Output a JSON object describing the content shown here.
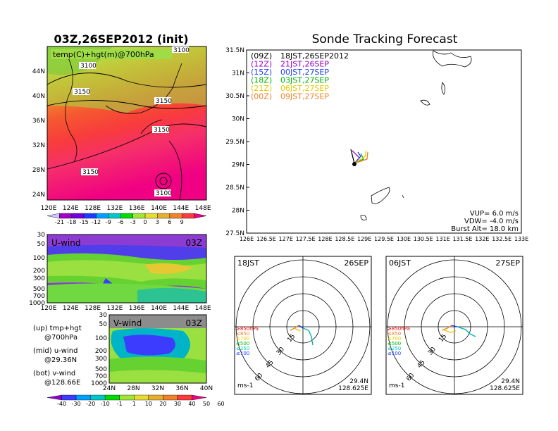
{
  "colors": {
    "sea": "#ffffff",
    "land_line": "#000000"
  },
  "left": {
    "title": "03Z,26SEP2012 (init)",
    "top_panel": {
      "label": "temp(C)+hgt(m)@700hPa",
      "lat_ticks": [
        "44N",
        "40N",
        "36N",
        "32N",
        "28N",
        "24N"
      ],
      "lon_ticks": [
        "120E",
        "124E",
        "128E",
        "132E",
        "136E",
        "140E",
        "144E",
        "148E"
      ],
      "contours": [
        "3100",
        "3100",
        "3150",
        "3150",
        "3150",
        "3150",
        "3100"
      ]
    },
    "temp_colorbar": {
      "labels": [
        "-21",
        "-18",
        "-15",
        "-12",
        "-9",
        "-6",
        "-3",
        "0",
        "3",
        "6",
        "9"
      ],
      "colors": [
        "#c8c8ff",
        "#a000c8",
        "#6e00dc",
        "#1e3cff",
        "#00a0ff",
        "#00c8c8",
        "#00dc00",
        "#a0e632",
        "#e6dc32",
        "#e6af2d",
        "#f08228",
        "#fa3c3c",
        "#f00082"
      ]
    },
    "u_panel": {
      "label": "U-wind",
      "time": "03Z",
      "p_ticks": [
        "30",
        "50",
        "100",
        "200",
        "300",
        "500",
        "700",
        "1000"
      ],
      "lon_ticks": [
        "120E",
        "124E",
        "128E",
        "132E",
        "136E",
        "140E",
        "144E",
        "148E"
      ]
    },
    "v_panel": {
      "label": "V-wind",
      "time": "03Z",
      "p_ticks": [
        "30",
        "50",
        "100",
        "200",
        "300",
        "500",
        "700",
        "1000"
      ],
      "lat_ticks": [
        "24N",
        "28N",
        "32N",
        "36N",
        "40N"
      ]
    },
    "legend_lines": [
      {
        "a": "(up) tmp+hgt",
        "b": "@700hPa"
      },
      {
        "a": "(mid) u-wind",
        "b": "@29.36N"
      },
      {
        "a": "(bot) v-wind",
        "b": "@128.66E"
      }
    ],
    "wind_colorbar": {
      "labels": [
        "-40",
        "-30",
        "-20",
        "-10",
        "-1",
        "1",
        "10",
        "20",
        "30",
        "40",
        "50",
        "60"
      ],
      "colors": [
        "#8c00d2",
        "#3c3cff",
        "#00a0ff",
        "#00c8c8",
        "#00dc00",
        "#a0e632",
        "#e6dc32",
        "#e6af2d",
        "#f08228",
        "#fa3c3c",
        "#f00082"
      ]
    }
  },
  "right": {
    "title": "Sonde Tracking Forecast",
    "map": {
      "lat_ticks": [
        "31.5N",
        "31N",
        "30.5N",
        "30N",
        "29.5N",
        "29N",
        "28.5N",
        "28N",
        "27.5N"
      ],
      "lon_ticks": [
        "126E",
        "126.5E",
        "127E",
        "127.5E",
        "128E",
        "128.5E",
        "129E",
        "129.5E",
        "130E",
        "130.5E",
        "131E",
        "131.5E",
        "132E",
        "132.5E",
        "133E"
      ],
      "legend": [
        {
          "tag": "(09Z)",
          "text": "18JST,26SEP2012",
          "color": "#000000"
        },
        {
          "tag": "(12Z)",
          "text": "21JST,26SEP",
          "color": "#a000c8"
        },
        {
          "tag": "(15Z)",
          "text": "00JST,27SEP",
          "color": "#1e3cff"
        },
        {
          "tag": "(18Z)",
          "text": "03JST,27SEP",
          "color": "#00b400"
        },
        {
          "tag": "(21Z)",
          "text": "06JST,27SEP",
          "color": "#e6c800"
        },
        {
          "tag": "(00Z)",
          "text": "09JST,27SEP",
          "color": "#f08228"
        }
      ],
      "params": [
        "VUP=  6.0 m/s",
        "VDW= -4.0 m/s",
        "Burst Alt= 18.0 km"
      ]
    },
    "polars": [
      {
        "time": "18JST",
        "date": "26SEP",
        "lat": "29.4N",
        "lon": "128.625E",
        "unit": "ms-1",
        "rings": [
          "15",
          "30",
          "45",
          "60"
        ]
      },
      {
        "time": "06JST",
        "date": "27SEP",
        "lat": "29.4N",
        "lon": "128.625E",
        "unit": "ms-1",
        "rings": [
          "15",
          "30",
          "45",
          "60"
        ]
      }
    ],
    "polar_legend": [
      {
        "text": "≥850hPa",
        "color": "#fa0000"
      },
      {
        "text": "≤850",
        "color": "#f08228"
      },
      {
        "text": "≤700",
        "color": "#e6c800"
      },
      {
        "text": "≤500",
        "color": "#00b400"
      },
      {
        "text": "≤250",
        "color": "#00c8c8"
      },
      {
        "text": "≤100",
        "color": "#1e3cff"
      }
    ]
  }
}
